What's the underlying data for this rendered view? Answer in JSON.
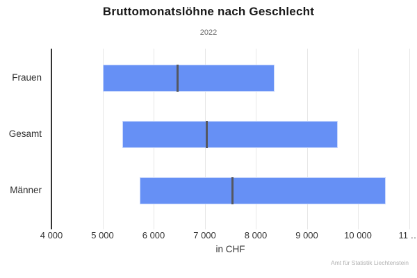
{
  "header": {
    "title": "Bruttomonatslöhne nach Geschlecht",
    "subtitle": "2022"
  },
  "credits": "Amt für Statistik Liechtenstein",
  "colors": {
    "bar": "#6690f5",
    "median_line": "#555860",
    "gridline": "#e7e7e7",
    "axis_line": "#333333",
    "title_text": "#181818",
    "muted_text": "#666666",
    "credits_text": "#b0b0b0"
  },
  "chart_data": {
    "type": "bar",
    "subtype": "columnrange-with-median",
    "orientation": "horizontal",
    "title": "Bruttomonatslöhne nach Geschlecht",
    "subtitle": "2022",
    "xlabel": "in CHF",
    "ylabel": "",
    "categories": [
      "Frauen",
      "Gesamt",
      "Männer"
    ],
    "series": [
      {
        "name": "Quartilsbereich",
        "type": "range",
        "low": [
          5000,
          5390,
          5730
        ],
        "high": [
          8370,
          9600,
          10550
        ]
      },
      {
        "name": "Median",
        "type": "marker",
        "values": [
          6476,
          7047,
          7543
        ]
      }
    ],
    "xlim": [
      4000,
      11000
    ],
    "x_ticks": [
      4000,
      5000,
      6000,
      7000,
      8000,
      9000,
      10000,
      11000
    ],
    "x_tick_labels": [
      "4 000",
      "5 000",
      "6 000",
      "7 000",
      "8 000",
      "9 000",
      "10 000",
      "11 …"
    ],
    "grid": true,
    "legend": false
  }
}
